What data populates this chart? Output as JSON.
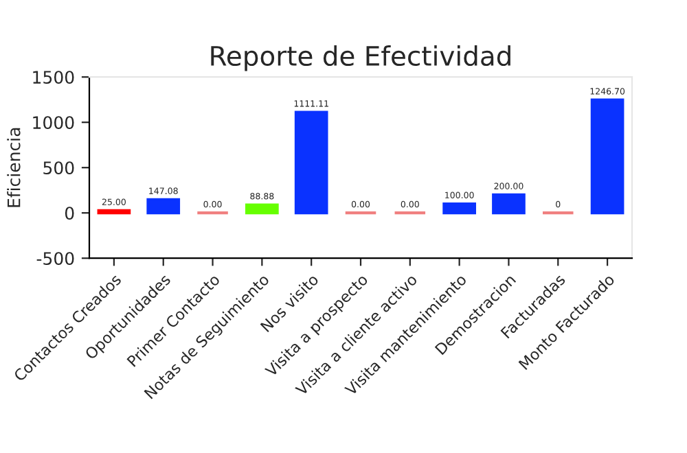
{
  "chart_data": {
    "type": "bar",
    "title": "Reporte de Efectividad",
    "ylabel": "Eficiencia",
    "categories": [
      "Contactos Creados",
      "Oportunidades",
      "Primer Contacto",
      "Notas de Seguimiento",
      "Nos visito",
      "Visita a prospecto",
      "Visita a cliente activo",
      "Visita mantenimiento",
      "Demostracion",
      "Facturadas",
      "Monto Facturado"
    ],
    "values": [
      25,
      147.08,
      0,
      88.88,
      1111.11,
      0,
      0,
      100,
      200,
      0,
      1246.7
    ],
    "colors": [
      "#ff0000",
      "#0a32ff",
      "#f08080",
      "#66ff00",
      "#0a32ff",
      "#f08080",
      "#f08080",
      "#0a32ff",
      "#0a32ff",
      "#f08080",
      "#0a32ff"
    ],
    "value_labels": [
      "25.00",
      "147.08",
      "0.00",
      "88.88",
      "1111.11",
      "0.00",
      "0.00",
      "100.00",
      "200.00",
      "0",
      "1246.70"
    ],
    "ylim": [
      -500,
      1500
    ],
    "yticks": [
      -500,
      0,
      500,
      1000,
      1500
    ],
    "grid": false
  }
}
